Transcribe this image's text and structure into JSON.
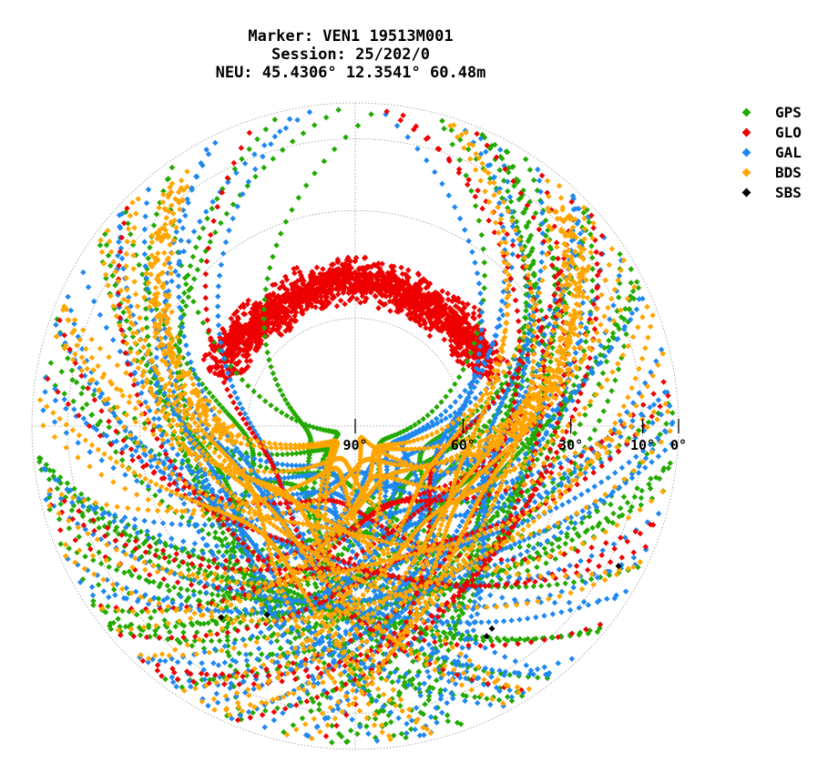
{
  "title": {
    "line1": "Marker: VEN1 19513M001",
    "line2": "Session: 25/202/0",
    "line3": "NEU: 45.4306° 12.3541° 60.48m"
  },
  "legend": [
    {
      "name": "GPS",
      "color": "#22aa00"
    },
    {
      "name": "GLO",
      "color": "#ee0000"
    },
    {
      "name": "GAL",
      "color": "#1e88f0"
    },
    {
      "name": "BDS",
      "color": "#ffa500"
    },
    {
      "name": "SBS",
      "color": "#000000"
    }
  ],
  "chart_data": {
    "type": "scatter",
    "projection": "polar skyplot (azimuth/elevation)",
    "elevation_ticks": [
      {
        "label": "90°",
        "value": 90
      },
      {
        "label": "60°",
        "value": 60
      },
      {
        "label": "30°",
        "value": 30
      },
      {
        "label": "10°",
        "value": 10
      },
      {
        "label": "0°",
        "value": 0
      }
    ],
    "grid": true,
    "legend_position": "top-right",
    "series": [
      {
        "name": "GPS",
        "color": "#22aa00"
      },
      {
        "name": "GLO",
        "color": "#ee0000"
      },
      {
        "name": "GAL",
        "color": "#1e88f0"
      },
      {
        "name": "BDS",
        "color": "#ffa500"
      },
      {
        "name": "SBS",
        "color": "#000000"
      }
    ],
    "observations": [
      {
        "system": "SBS",
        "az": 146,
        "el": 22
      },
      {
        "system": "SBS",
        "az": 148,
        "el": 21
      },
      {
        "system": "SBS",
        "az": 118,
        "el": 7
      },
      {
        "system": "SBS",
        "az": 215,
        "el": 25
      },
      {
        "system": "SBS",
        "az": 205,
        "el": 32
      }
    ]
  }
}
